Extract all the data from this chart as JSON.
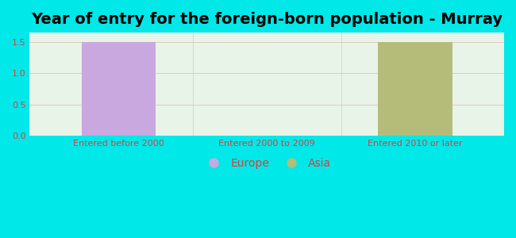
{
  "title": "Year of entry for the foreign-born population - Murray",
  "categories": [
    "Entered before 2000",
    "Entered 2000 to 2009",
    "Entered 2010 or later"
  ],
  "europe_values": [
    1.5,
    0,
    0
  ],
  "asia_values": [
    0,
    0,
    1.5
  ],
  "europe_color": "#c9a8e0",
  "asia_color": "#b5bc7a",
  "background_color": "#00e8e8",
  "plot_bg_top": "#f0f8f0",
  "plot_bg_bottom": "#e0f0e0",
  "ylim": [
    0,
    1.65
  ],
  "yticks": [
    0,
    0.5,
    1,
    1.5
  ],
  "bar_width": 0.5,
  "title_fontsize": 14,
  "tick_fontsize": 8,
  "legend_fontsize": 10,
  "tick_color": "#cc4444",
  "label_color": "#cc4444"
}
